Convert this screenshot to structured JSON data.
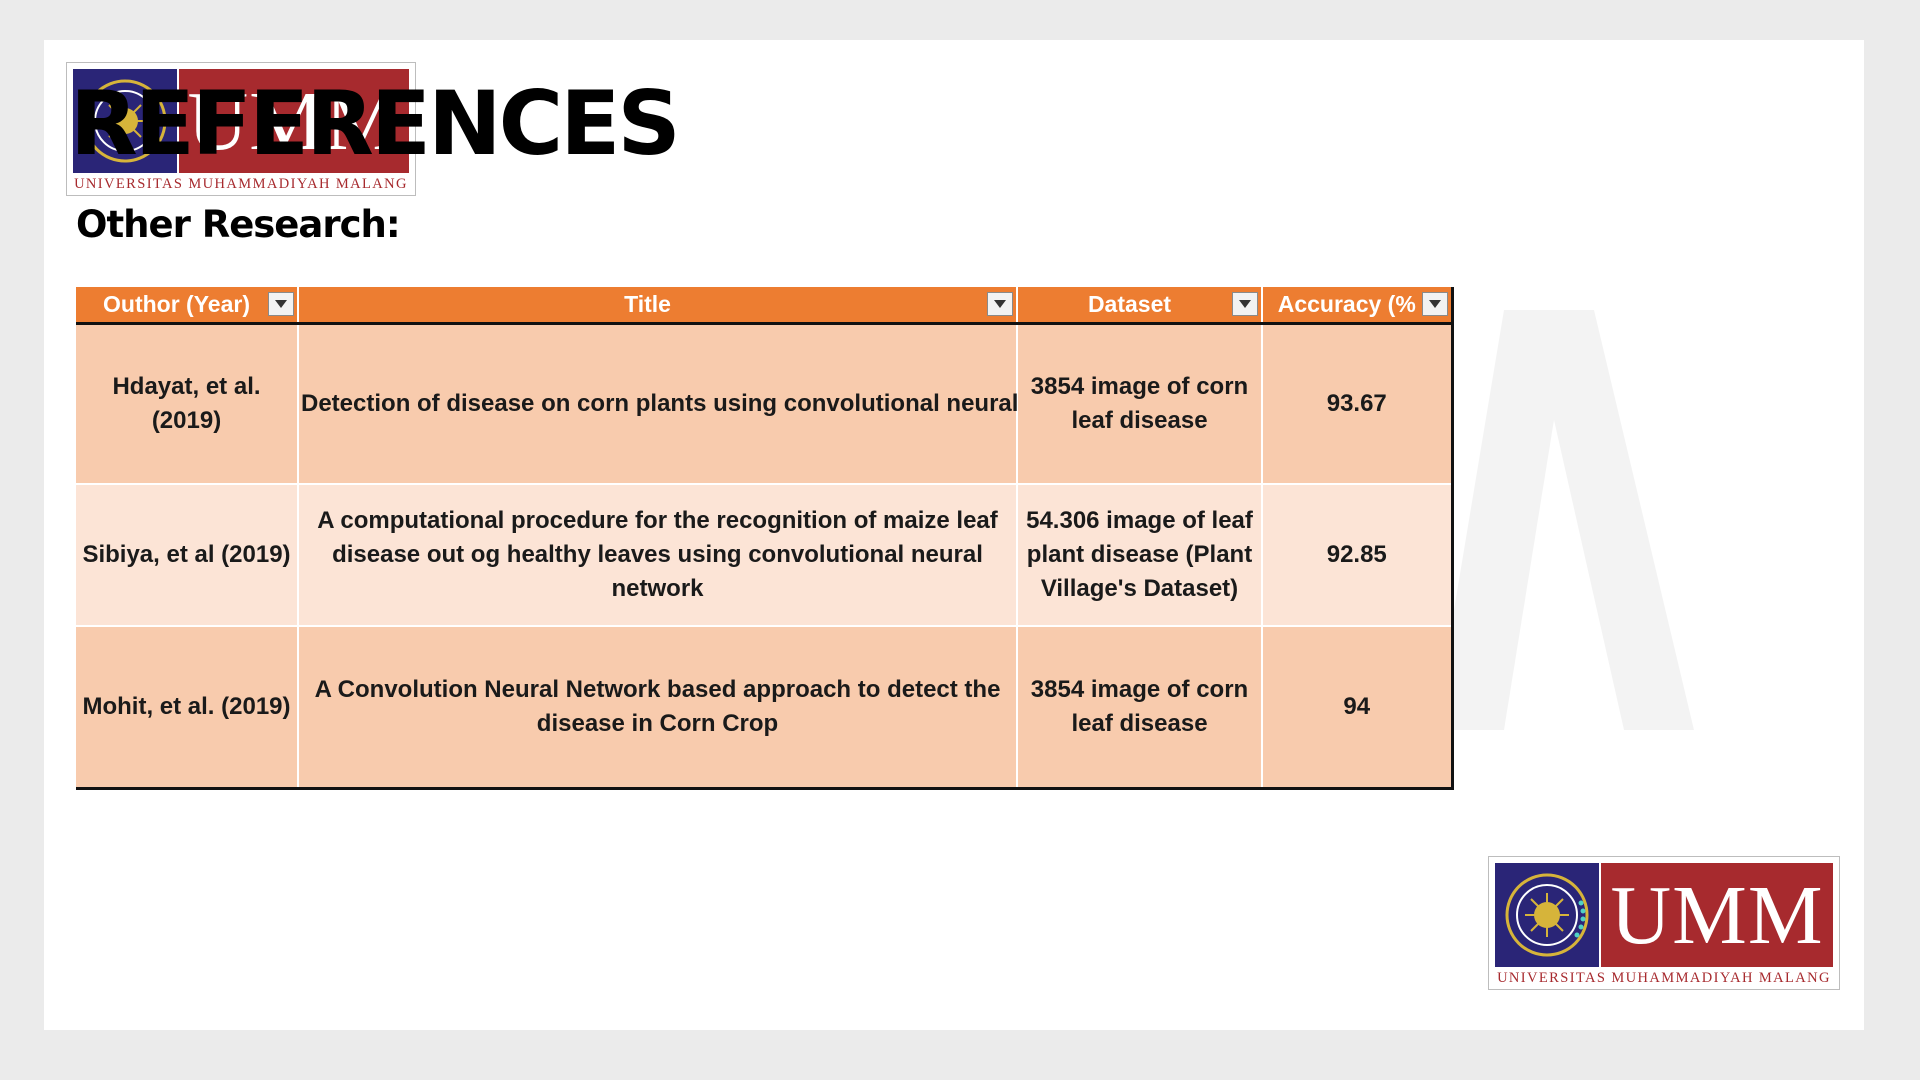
{
  "header": {
    "title": "REFERENCES",
    "subtitle": "Other Research:"
  },
  "logo": {
    "mark": "UMM",
    "caption": "UNIVERSITAS MUHAMMADIYAH MALANG",
    "seal_icon": "university-seal-icon",
    "colors": {
      "navy": "#2a2577",
      "red": "#a72a2e",
      "gold": "#d6b43a"
    }
  },
  "table": {
    "columns": [
      "Outhor (Year)",
      "Title",
      "Dataset",
      "Accuracy (%"
    ],
    "filter_icon": "dropdown-filter-icon",
    "colors": {
      "header": "#ed7d31",
      "row_dark": "#f8cbad",
      "row_light": "#fce4d6"
    },
    "rows": [
      {
        "author": "Hdayat, et al. (2019)",
        "title": "Detection of disease on corn plants using convolutional neural",
        "dataset": "3854 image of corn leaf disease",
        "accuracy": "93.67"
      },
      {
        "author": "Sibiya, et al (2019)",
        "title": "A computational procedure for the recognition of maize leaf disease out og healthy leaves using convolutional neural network",
        "dataset": "54.306 image of leaf plant disease (Plant Village's Dataset)",
        "accuracy": "92.85"
      },
      {
        "author": "Mohit, et al. (2019)",
        "title": "A Convolution Neural Network based approach to detect the disease in Corn Crop",
        "dataset": "3854 image of corn leaf disease",
        "accuracy": "94"
      }
    ]
  }
}
